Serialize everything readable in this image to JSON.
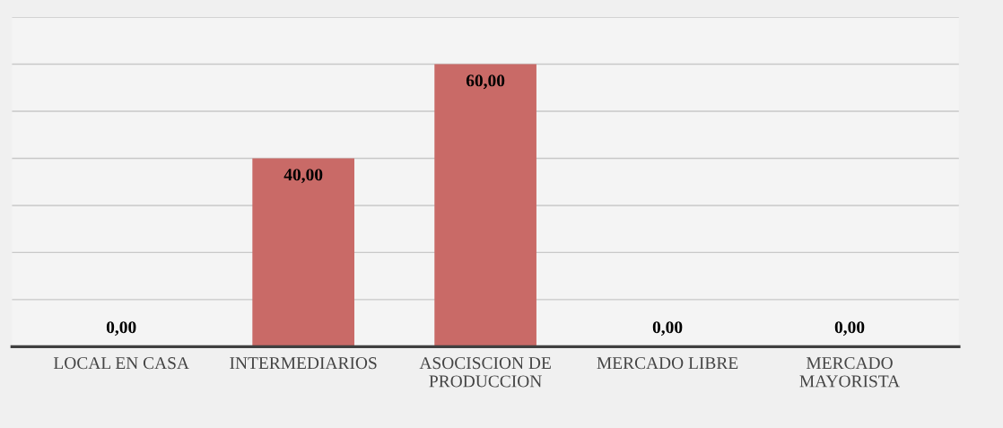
{
  "chart_data": {
    "type": "bar",
    "categories": [
      "LOCAL EN CASA",
      "INTERMEDIARIOS",
      "ASOCISCION DE\nPRODUCCION",
      "MERCADO LIBRE",
      "MERCADO\nMAYORISTA"
    ],
    "values": [
      0,
      40,
      60,
      0,
      0
    ],
    "value_labels": [
      "0,00",
      "40,00",
      "60,00",
      "0,00",
      "0,00"
    ],
    "color": "#c96a67",
    "yticks": [
      {
        "value": 0,
        "label": null
      },
      {
        "value": 10,
        "label": null
      },
      {
        "value": 20,
        "label": null
      },
      {
        "value": 30,
        "label": null
      },
      {
        "value": 40,
        "label": null
      },
      {
        "value": 50,
        "label": null
      },
      {
        "value": 60,
        "label": null
      },
      {
        "value": 70,
        "label": null
      }
    ],
    "grid": "y",
    "tick_labels": "x"
  }
}
